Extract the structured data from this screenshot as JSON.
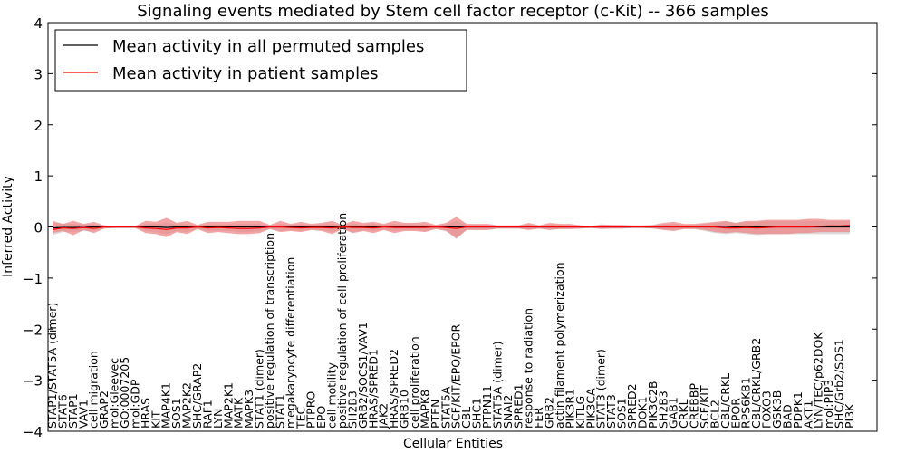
{
  "chart_data": {
    "type": "line",
    "title": "Signaling events mediated by Stem cell factor receptor (c-Kit) -- 366 samples",
    "xlabel": "Cellular Entities",
    "ylabel": "Inferred Activity",
    "ylim": [
      -4,
      4
    ],
    "yticks": [
      -4,
      -3,
      -2,
      -1,
      0,
      1,
      2,
      3,
      4
    ],
    "legend_position": "top-left",
    "colors": {
      "permuted": "#000000",
      "patient": "#ff0000",
      "patient_band": "#f08080",
      "permuted_band": "#bbbbbb"
    },
    "categories": [
      "STAP1/STAT5A (dimer)",
      "STAT6",
      "STAP1",
      "VAV1",
      "cell migration",
      "GRAP2",
      "mol:Gleevec",
      "GO:0007205",
      "mol:GDP",
      "HRAS",
      "KIT",
      "MAP4K1",
      "SOS1",
      "MAP2K2",
      "SHC/GRAP2",
      "RAF1",
      "LYN",
      "MAP2K1",
      "MATK",
      "MAPK3",
      "STAT1 (dimer)",
      "positive regulation of transcription",
      "STAT1",
      "megakaryocyte differentiation",
      "TEC",
      "PTPRO",
      "EPO",
      "cell motility",
      "positive regulation of cell proliferation",
      "SH2B3",
      "GRB2/SOCS1/VAV1",
      "HRAS/SPRED1",
      "JAK2",
      "HRAS/SPRED2",
      "GRB10",
      "cell proliferation",
      "MAPK8",
      "PTEN",
      "STAT5A",
      "SCF/KIT/EPO/EPOR",
      "CBL",
      "SHC1",
      "PTPN11",
      "STAT5A (dimer)",
      "SNAI2",
      "SPRED1",
      "response to radiation",
      "FER",
      "GRB2",
      "actin filament polymerization",
      "PIK3R1",
      "KITLG",
      "PIK3CA",
      "STAT3 (dimer)",
      "STAT3",
      "SOS1",
      "SPRED2",
      "DOK1",
      "PIK3C2B",
      "SH2B3",
      "GAB1",
      "CRKL",
      "CREBBP",
      "SCF/KIT",
      "BCL2",
      "CBL/CRKL",
      "EPOR",
      "RPS6KB1",
      "CBL/CRKL/GRB2",
      "FOXO3",
      "GSK3B",
      "BAD",
      "PDPK1",
      "AKT1",
      "LYN/TEC/p62DOK",
      "mol:PIP3",
      "SHC/Grb2/SOS1",
      "PI3K"
    ],
    "series": [
      {
        "name": "Mean activity in all permuted samples",
        "values": [
          -0.02,
          -0.01,
          -0.01,
          -0.01,
          0.0,
          0.0,
          0.0,
          0.0,
          0.0,
          0.0,
          0.0,
          -0.01,
          0.0,
          0.0,
          0.0,
          0.0,
          0.0,
          0.0,
          0.0,
          0.0,
          0.0,
          0.0,
          0.0,
          0.0,
          0.0,
          0.0,
          0.0,
          0.0,
          0.0,
          0.0,
          0.0,
          0.0,
          0.0,
          0.0,
          0.0,
          0.0,
          0.0,
          0.0,
          0.0,
          0.0,
          0.0,
          0.0,
          0.0,
          0.0,
          0.0,
          0.0,
          0.0,
          0.0,
          0.0,
          0.0,
          0.0,
          0.0,
          0.0,
          0.0,
          0.0,
          0.0,
          0.0,
          0.0,
          0.0,
          0.0,
          0.0,
          0.0,
          0.0,
          0.0,
          0.0,
          -0.01,
          0.0,
          0.0,
          0.0,
          0.0,
          0.0,
          0.0,
          0.0,
          0.0,
          0.0,
          0.0,
          0.0,
          0.0
        ]
      },
      {
        "name": "Mean activity in patient samples",
        "values": [
          -0.05,
          -0.02,
          -0.03,
          -0.01,
          -0.03,
          0.0,
          0.0,
          0.0,
          0.0,
          -0.02,
          -0.03,
          -0.05,
          -0.02,
          -0.02,
          0.0,
          -0.02,
          -0.01,
          -0.02,
          -0.03,
          -0.03,
          -0.02,
          0.0,
          0.0,
          -0.01,
          -0.02,
          -0.01,
          -0.01,
          -0.02,
          0.0,
          -0.01,
          -0.01,
          -0.02,
          0.0,
          -0.01,
          -0.01,
          -0.01,
          -0.01,
          0.0,
          -0.01,
          -0.03,
          0.0,
          0.0,
          0.0,
          0.0,
          0.0,
          0.0,
          0.0,
          0.0,
          0.0,
          0.0,
          0.0,
          0.0,
          0.0,
          0.0,
          0.0,
          0.0,
          0.0,
          0.0,
          0.0,
          0.0,
          0.0,
          0.0,
          0.0,
          0.0,
          0.0,
          -0.02,
          -0.02,
          -0.01,
          -0.02,
          -0.01,
          0.0,
          0.0,
          0.0,
          0.0,
          0.01,
          0.02,
          0.02,
          0.03
        ]
      }
    ],
    "patient_band": {
      "upper": [
        0.12,
        0.06,
        0.12,
        0.06,
        0.1,
        0.03,
        0.02,
        0.02,
        0.02,
        0.12,
        0.1,
        0.18,
        0.08,
        0.12,
        0.04,
        0.1,
        0.1,
        0.1,
        0.12,
        0.12,
        0.12,
        0.04,
        0.12,
        0.06,
        0.1,
        0.06,
        0.08,
        0.12,
        0.04,
        0.12,
        0.08,
        0.1,
        0.06,
        0.12,
        0.08,
        0.08,
        0.1,
        0.04,
        0.08,
        0.2,
        0.06,
        0.06,
        0.06,
        0.03,
        0.03,
        0.03,
        0.08,
        0.03,
        0.08,
        0.06,
        0.06,
        0.03,
        0.02,
        0.05,
        0.04,
        0.04,
        0.03,
        0.03,
        0.04,
        0.08,
        0.1,
        0.06,
        0.06,
        0.08,
        0.1,
        0.12,
        0.08,
        0.12,
        0.12,
        0.14,
        0.14,
        0.14,
        0.14,
        0.16,
        0.16,
        0.14,
        0.14,
        0.14
      ],
      "lower": [
        -0.12,
        -0.08,
        -0.16,
        -0.06,
        -0.12,
        -0.03,
        -0.02,
        -0.02,
        -0.02,
        -0.12,
        -0.14,
        -0.2,
        -0.1,
        -0.14,
        -0.04,
        -0.12,
        -0.1,
        -0.12,
        -0.14,
        -0.14,
        -0.12,
        -0.04,
        -0.1,
        -0.08,
        -0.1,
        -0.06,
        -0.08,
        -0.14,
        -0.04,
        -0.12,
        -0.08,
        -0.12,
        -0.06,
        -0.12,
        -0.08,
        -0.08,
        -0.1,
        -0.04,
        -0.08,
        -0.22,
        -0.06,
        -0.06,
        -0.06,
        -0.03,
        -0.03,
        -0.03,
        -0.06,
        -0.03,
        -0.06,
        -0.04,
        -0.04,
        -0.03,
        -0.02,
        -0.04,
        -0.03,
        -0.03,
        -0.02,
        -0.02,
        -0.03,
        -0.06,
        -0.08,
        -0.04,
        -0.04,
        -0.06,
        -0.1,
        -0.12,
        -0.1,
        -0.12,
        -0.14,
        -0.14,
        -0.14,
        -0.14,
        -0.12,
        -0.12,
        -0.1,
        -0.1,
        -0.1,
        -0.1
      ]
    },
    "permuted_band": {
      "upper": [
        0.08,
        0.06,
        0.06,
        0.05,
        0.05,
        0.02,
        0.02,
        0.02,
        0.02,
        0.06,
        0.06,
        0.08,
        0.05,
        0.06,
        0.03,
        0.05,
        0.05,
        0.05,
        0.06,
        0.06,
        0.06,
        0.03,
        0.06,
        0.04,
        0.05,
        0.04,
        0.05,
        0.06,
        0.03,
        0.06,
        0.05,
        0.06,
        0.04,
        0.06,
        0.05,
        0.05,
        0.05,
        0.03,
        0.05,
        0.12,
        0.04,
        0.04,
        0.04,
        0.02,
        0.02,
        0.02,
        0.05,
        0.02,
        0.05,
        0.04,
        0.04,
        0.02,
        0.02,
        0.03,
        0.03,
        0.03,
        0.02,
        0.02,
        0.03,
        0.05,
        0.06,
        0.04,
        0.04,
        0.06,
        0.08,
        0.1,
        0.08,
        0.1,
        0.1,
        0.12,
        0.12,
        0.12,
        0.12,
        0.12,
        0.12,
        0.12,
        0.12,
        0.12
      ],
      "lower": [
        -0.16,
        -0.1,
        -0.1,
        -0.08,
        -0.08,
        -0.03,
        -0.02,
        -0.02,
        -0.02,
        -0.08,
        -0.1,
        -0.14,
        -0.08,
        -0.1,
        -0.04,
        -0.08,
        -0.08,
        -0.08,
        -0.1,
        -0.1,
        -0.08,
        -0.04,
        -0.08,
        -0.06,
        -0.08,
        -0.05,
        -0.06,
        -0.1,
        -0.04,
        -0.1,
        -0.06,
        -0.08,
        -0.05,
        -0.08,
        -0.06,
        -0.06,
        -0.08,
        -0.04,
        -0.06,
        -0.24,
        -0.05,
        -0.05,
        -0.05,
        -0.03,
        -0.03,
        -0.03,
        -0.05,
        -0.03,
        -0.05,
        -0.04,
        -0.04,
        -0.03,
        -0.02,
        -0.03,
        -0.03,
        -0.03,
        -0.02,
        -0.02,
        -0.03,
        -0.05,
        -0.06,
        -0.04,
        -0.04,
        -0.08,
        -0.12,
        -0.14,
        -0.12,
        -0.14,
        -0.16,
        -0.14,
        -0.14,
        -0.14,
        -0.14,
        -0.14,
        -0.14,
        -0.14,
        -0.14,
        -0.14
      ]
    }
  }
}
